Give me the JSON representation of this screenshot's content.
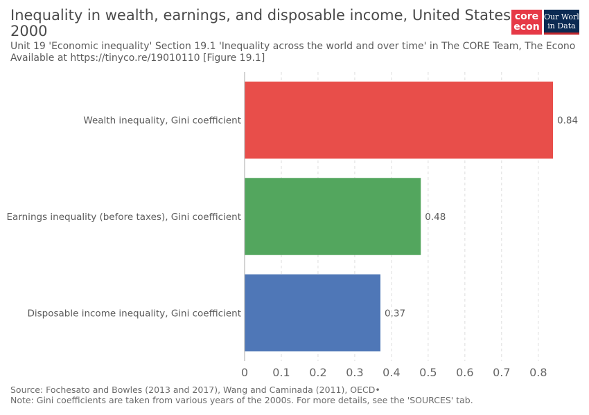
{
  "header": {
    "title": "Inequality in wealth, earnings, and disposable income, United States, 2000",
    "subtitle_line1": "Unit 19 'Economic inequality' Section 19.1 'Inequality across the world and over time' in The CORE Team, The Econo",
    "subtitle_line2": "Available at https://tinyco.re/19010110 [Figure 19.1]"
  },
  "logo": {
    "core_line1": "core",
    "core_line2": "econ",
    "owid_line1": "Our World",
    "owid_line2": "in Data",
    "core_color": "#e63946",
    "owid_color": "#0b2a52"
  },
  "chart_data": {
    "type": "bar",
    "orientation": "horizontal",
    "categories": [
      "Wealth inequality, Gini coefficient",
      "Earnings inequality (before taxes), Gini coefficient",
      "Disposable income inequality, Gini coefficient"
    ],
    "values": [
      0.84,
      0.48,
      0.37
    ],
    "value_labels": [
      "0.84",
      "0.48",
      "0.37"
    ],
    "colors": [
      "#e84e4a",
      "#53a65e",
      "#4f77b7"
    ],
    "xlim": [
      0,
      0.84
    ],
    "x_ticks": [
      0,
      0.1,
      0.2,
      0.3,
      0.4,
      0.5,
      0.6,
      0.7,
      0.8
    ],
    "x_tick_labels": [
      "0",
      "0.1",
      "0.2",
      "0.3",
      "0.4",
      "0.5",
      "0.6",
      "0.7",
      "0.8"
    ],
    "grid": "vertical-dashed",
    "xlabel": "",
    "ylabel": ""
  },
  "footer": {
    "source": "Source: Fochesato and Bowles (2013 and 2017), Wang and Caminada (2011), OECD•",
    "note": "Note: Gini coefficients are taken from various years of the 2000s. For more details, see the 'SOURCES' tab."
  }
}
